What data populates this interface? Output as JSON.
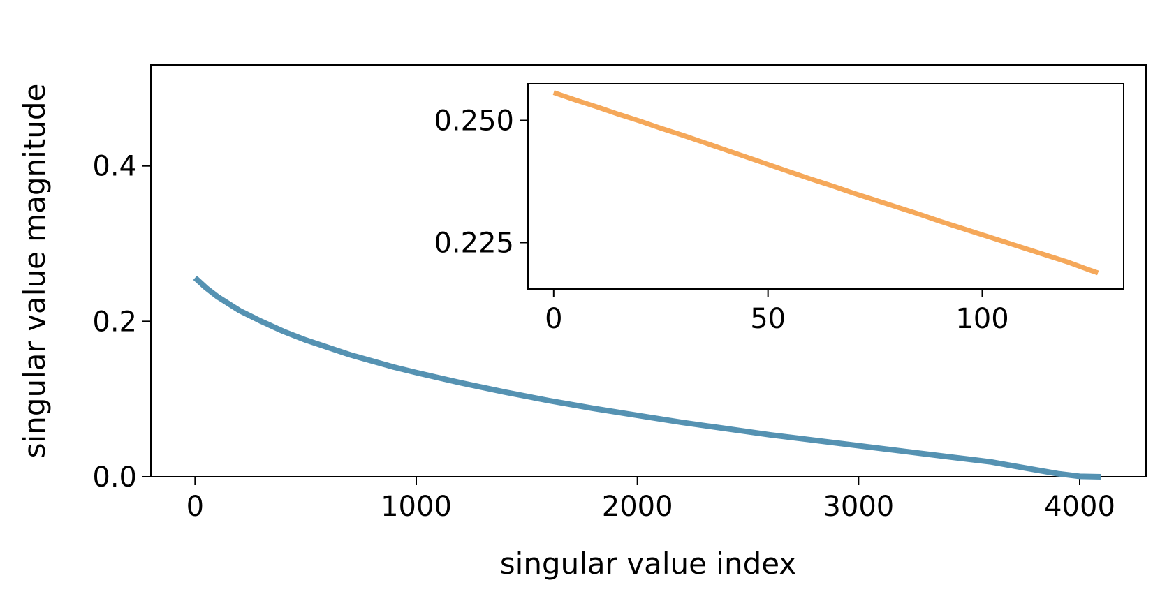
{
  "chart_data": [
    {
      "type": "line",
      "role": "main",
      "xlabel": "singular value index",
      "ylabel": "singular value magnitude",
      "xlim": [
        -200,
        4300
      ],
      "ylim": [
        0,
        0.53
      ],
      "xticks": [
        0,
        1000,
        2000,
        3000,
        4000
      ],
      "xtick_labels": [
        "0",
        "1000",
        "2000",
        "3000",
        "4000"
      ],
      "yticks": [
        0,
        0.2,
        0.4
      ],
      "ytick_labels": [
        "0.0",
        "0.2",
        "0.4"
      ],
      "grid": false,
      "series": [
        {
          "color": "#5592b2",
          "x": [
            0,
            50,
            100,
            200,
            300,
            400,
            500,
            700,
            900,
            1000,
            1200,
            1400,
            1600,
            1800,
            2000,
            2200,
            2400,
            2600,
            2800,
            3000,
            3200,
            3400,
            3600,
            3700,
            3800,
            3900,
            4000,
            4096
          ],
          "y": [
            0.256,
            0.243,
            0.232,
            0.214,
            0.2,
            0.187,
            0.176,
            0.157,
            0.141,
            0.134,
            0.121,
            0.109,
            0.098,
            0.088,
            0.079,
            0.07,
            0.062,
            0.054,
            0.047,
            0.04,
            0.033,
            0.026,
            0.019,
            0.014,
            0.009,
            0.004,
            0.0005,
            0.0
          ]
        }
      ]
    },
    {
      "type": "line",
      "role": "inset",
      "xlim": [
        -6,
        133
      ],
      "ylim": [
        0.2155,
        0.2575
      ],
      "xticks": [
        0,
        50,
        100
      ],
      "xtick_labels": [
        "0",
        "50",
        "100"
      ],
      "yticks": [
        0.225,
        0.25
      ],
      "ytick_labels": [
        "0.225",
        "0.250"
      ],
      "grid": false,
      "series": [
        {
          "color": "#f5a85a",
          "x": [
            0,
            5,
            10,
            15,
            20,
            25,
            30,
            35,
            40,
            45,
            50,
            55,
            60,
            65,
            70,
            75,
            80,
            85,
            90,
            95,
            100,
            105,
            110,
            115,
            120,
            125,
            127
          ],
          "y": [
            0.2557,
            0.2542,
            0.2528,
            0.2513,
            0.2499,
            0.2484,
            0.247,
            0.2455,
            0.244,
            0.2425,
            0.241,
            0.2395,
            0.238,
            0.2366,
            0.2351,
            0.2337,
            0.2323,
            0.2309,
            0.2294,
            0.228,
            0.2266,
            0.2252,
            0.2238,
            0.2224,
            0.221,
            0.2194,
            0.2188
          ]
        }
      ]
    }
  ]
}
